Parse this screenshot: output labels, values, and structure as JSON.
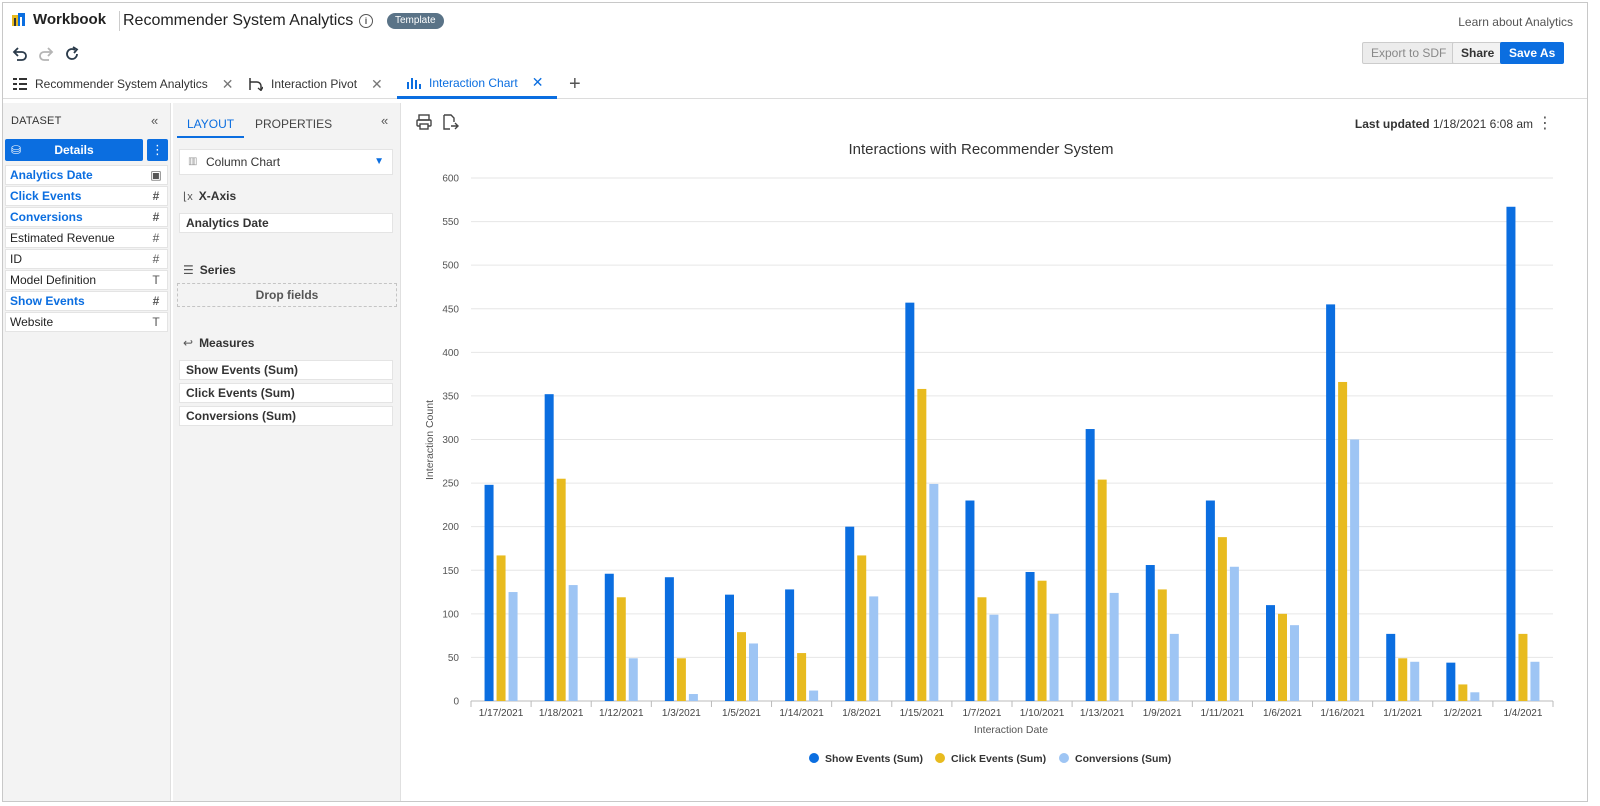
{
  "header": {
    "app_name": "Workbook",
    "doc_title": "Recommender System Analytics",
    "badge": "Template",
    "learn_link": "Learn about Analytics"
  },
  "toolbar": {
    "export_label": "Export to SDF",
    "share_label": "Share",
    "save_as_label": "Save As"
  },
  "tabs": [
    {
      "label": "Recommender System Analytics",
      "icon": "table-icon"
    },
    {
      "label": "Interaction Pivot",
      "icon": "pivot-icon"
    },
    {
      "label": "Interaction Chart",
      "icon": "bar-chart-icon",
      "active": true
    }
  ],
  "dataset": {
    "heading": "DATASET",
    "details_label": "Details",
    "fields": [
      {
        "name": "Analytics Date",
        "type": "date",
        "used": true
      },
      {
        "name": "Click Events",
        "type": "#",
        "used": true
      },
      {
        "name": "Conversions",
        "type": "#",
        "used": true
      },
      {
        "name": "Estimated Revenue",
        "type": "#",
        "used": false
      },
      {
        "name": "ID",
        "type": "#",
        "used": false
      },
      {
        "name": "Model Definition",
        "type": "T",
        "used": false
      },
      {
        "name": "Show Events",
        "type": "#",
        "used": true
      },
      {
        "name": "Website",
        "type": "T",
        "used": false
      }
    ]
  },
  "layout_panel": {
    "tab_layout": "LAYOUT",
    "tab_properties": "PROPERTIES",
    "chart_type": "Column Chart",
    "xaxis_label": "X-Axis",
    "xaxis_field": "Analytics Date",
    "series_label": "Series",
    "series_drop": "Drop fields",
    "measures_label": "Measures",
    "measures": [
      "Show Events (Sum)",
      "Click Events (Sum)",
      "Conversions (Sum)"
    ]
  },
  "chart_meta": {
    "last_updated_label": "Last updated",
    "last_updated_value": "1/18/2021 6:08 am"
  },
  "colors": {
    "accent": "#0b6ee0",
    "show": "#0b6ee0",
    "click": "#e8bb1f",
    "conv": "#9ec5f4"
  },
  "chart_data": {
    "type": "bar",
    "title": "Interactions with Recommender System",
    "xlabel": "Interaction Date",
    "ylabel": "Interaction Count",
    "ylim": [
      0,
      600
    ],
    "yticks": [
      0,
      50,
      100,
      150,
      200,
      250,
      300,
      350,
      400,
      450,
      500,
      550,
      600
    ],
    "grid": true,
    "legend": "bottom",
    "categories": [
      "1/17/2021",
      "1/18/2021",
      "1/12/2021",
      "1/3/2021",
      "1/5/2021",
      "1/14/2021",
      "1/8/2021",
      "1/15/2021",
      "1/7/2021",
      "1/10/2021",
      "1/13/2021",
      "1/9/2021",
      "1/11/2021",
      "1/6/2021",
      "1/16/2021",
      "1/1/2021",
      "1/2/2021",
      "1/4/2021"
    ],
    "series": [
      {
        "name": "Show Events (Sum)",
        "values": [
          248,
          352,
          146,
          142,
          122,
          128,
          200,
          457,
          230,
          148,
          312,
          156,
          230,
          110,
          455,
          77,
          44,
          567
        ]
      },
      {
        "name": "Click Events (Sum)",
        "values": [
          167,
          255,
          119,
          49,
          79,
          55,
          167,
          358,
          119,
          138,
          254,
          128,
          188,
          100,
          366,
          49,
          19,
          77
        ]
      },
      {
        "name": "Conversions (Sum)",
        "values": [
          125,
          133,
          49,
          8,
          66,
          12,
          120,
          249,
          99,
          100,
          124,
          77,
          154,
          87,
          300,
          45,
          10,
          45
        ]
      }
    ]
  }
}
